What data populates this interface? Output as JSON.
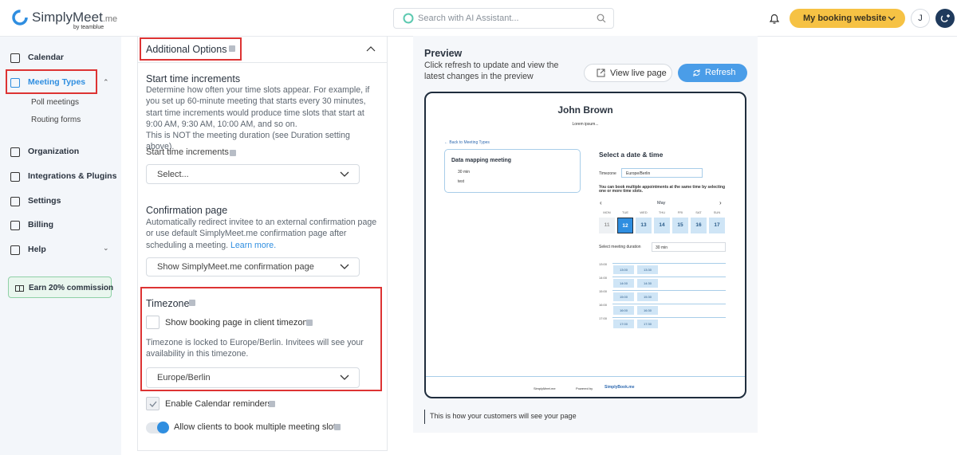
{
  "header": {
    "logo": "SimplyMeet",
    "logo_suffix": ".me",
    "logo_by": "by teamblue",
    "search_placeholder": "Search with AI Assistant...",
    "booking_button": "My booking website",
    "avatar": "J"
  },
  "sidebar": {
    "items": [
      "Calendar",
      "Meeting Types",
      "Poll meetings",
      "Routing forms",
      "Organization",
      "Integrations & Plugins",
      "Settings",
      "Billing",
      "Help"
    ],
    "promo": "Earn 20% commission"
  },
  "settings": {
    "section_title": "Additional Options",
    "start_time": {
      "title": "Start time increments",
      "description": "Determine how often your time slots appear. For example, if you set up 60-minute meeting that starts every 30 minutes, start time increments would produce time slots that start at 9:00 AM, 9:30 AM, 10:00 AM, and so on.",
      "note": "This is NOT the meeting duration (see Duration setting above).",
      "field_label": "Start time increments",
      "select_placeholder": "Select..."
    },
    "confirmation": {
      "title": "Confirmation page",
      "description": "Automatically redirect invitee to an external confirmation page or use default SimplyMeet.me confirmation page after scheduling a meeting.",
      "link": "Learn more.",
      "select_value": "Show SimplyMeet.me confirmation page"
    },
    "timezone": {
      "title": "Timezone",
      "checkbox_label": "Show booking page in client timezone",
      "note": "Timezone is locked to Europe/Berlin. Invitees will see your availability in this timezone.",
      "select_value": "Europe/Berlin"
    },
    "reminders_label": "Enable Calendar reminders",
    "multiple_slots_label": "Allow clients to book multiple meeting slots"
  },
  "preview": {
    "title": "Preview",
    "description": "Click refresh to update and view the latest changes in the preview",
    "view_live": "View live page",
    "refresh": "Refresh",
    "booking": {
      "host": "John Brown",
      "subtitle": "Lorem ipsum...",
      "back_link": "← Back to Meeting Types",
      "meeting_name": "Data mapping meeting",
      "duration": "30 min",
      "location": "test",
      "select_heading": "Select a date & time",
      "timezone_label": "Timezone",
      "timezone_value": "Europe/Berlin",
      "multi_note": "You can book multiple appointments at the same time by selecting one or more time slots.",
      "month": "May",
      "weekdays": [
        "MON",
        "TUE",
        "WED",
        "THU",
        "FRI",
        "SAT",
        "SUN"
      ],
      "days": [
        "11",
        "12",
        "13",
        "14",
        "15",
        "16",
        "17"
      ],
      "duration_label": "Select meeting duration",
      "duration_value": "30 min",
      "hours": [
        "13:00",
        "14:00",
        "15:00",
        "16:00",
        "17:00"
      ],
      "slots": [
        [
          "13:00",
          "13:30"
        ],
        [
          "14:00",
          "14:30"
        ],
        [
          "15:00",
          "15:30"
        ],
        [
          "16:00",
          "16:30"
        ],
        [
          "17:00",
          "17:30"
        ]
      ],
      "footer_brand_left": "SimplyMeet.me",
      "powered_by": "Powered by",
      "footer_brand_right": "SimplyBook.me"
    },
    "caption": "This is how your customers will see your page"
  }
}
